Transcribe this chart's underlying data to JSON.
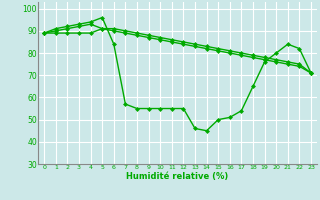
{
  "xlabel": "Humidité relative (%)",
  "background_color": "#cce8e8",
  "grid_color": "#ffffff",
  "line_color": "#00aa00",
  "marker": "D",
  "markersize": 2,
  "linewidth": 1.0,
  "ylim": [
    30,
    103
  ],
  "xlim": [
    -0.5,
    23.5
  ],
  "yticks": [
    30,
    40,
    50,
    60,
    70,
    80,
    90,
    100
  ],
  "xticks": [
    0,
    1,
    2,
    3,
    4,
    5,
    6,
    7,
    8,
    9,
    10,
    11,
    12,
    13,
    14,
    15,
    16,
    17,
    18,
    19,
    20,
    21,
    22,
    23
  ],
  "series1": [
    89,
    91,
    92,
    93,
    94,
    96,
    84,
    57,
    55,
    55,
    55,
    55,
    55,
    46,
    45,
    50,
    51,
    54,
    65,
    76,
    80,
    84,
    82,
    71
  ],
  "series2": [
    89,
    90,
    91,
    92,
    93,
    91,
    91,
    90,
    89,
    88,
    87,
    86,
    85,
    84,
    83,
    82,
    81,
    80,
    79,
    78,
    77,
    76,
    75,
    71
  ],
  "series3": [
    89,
    89,
    89,
    89,
    89,
    91,
    90,
    89,
    88,
    87,
    86,
    85,
    84,
    83,
    82,
    81,
    80,
    79,
    78,
    77,
    76,
    75,
    74,
    71
  ]
}
